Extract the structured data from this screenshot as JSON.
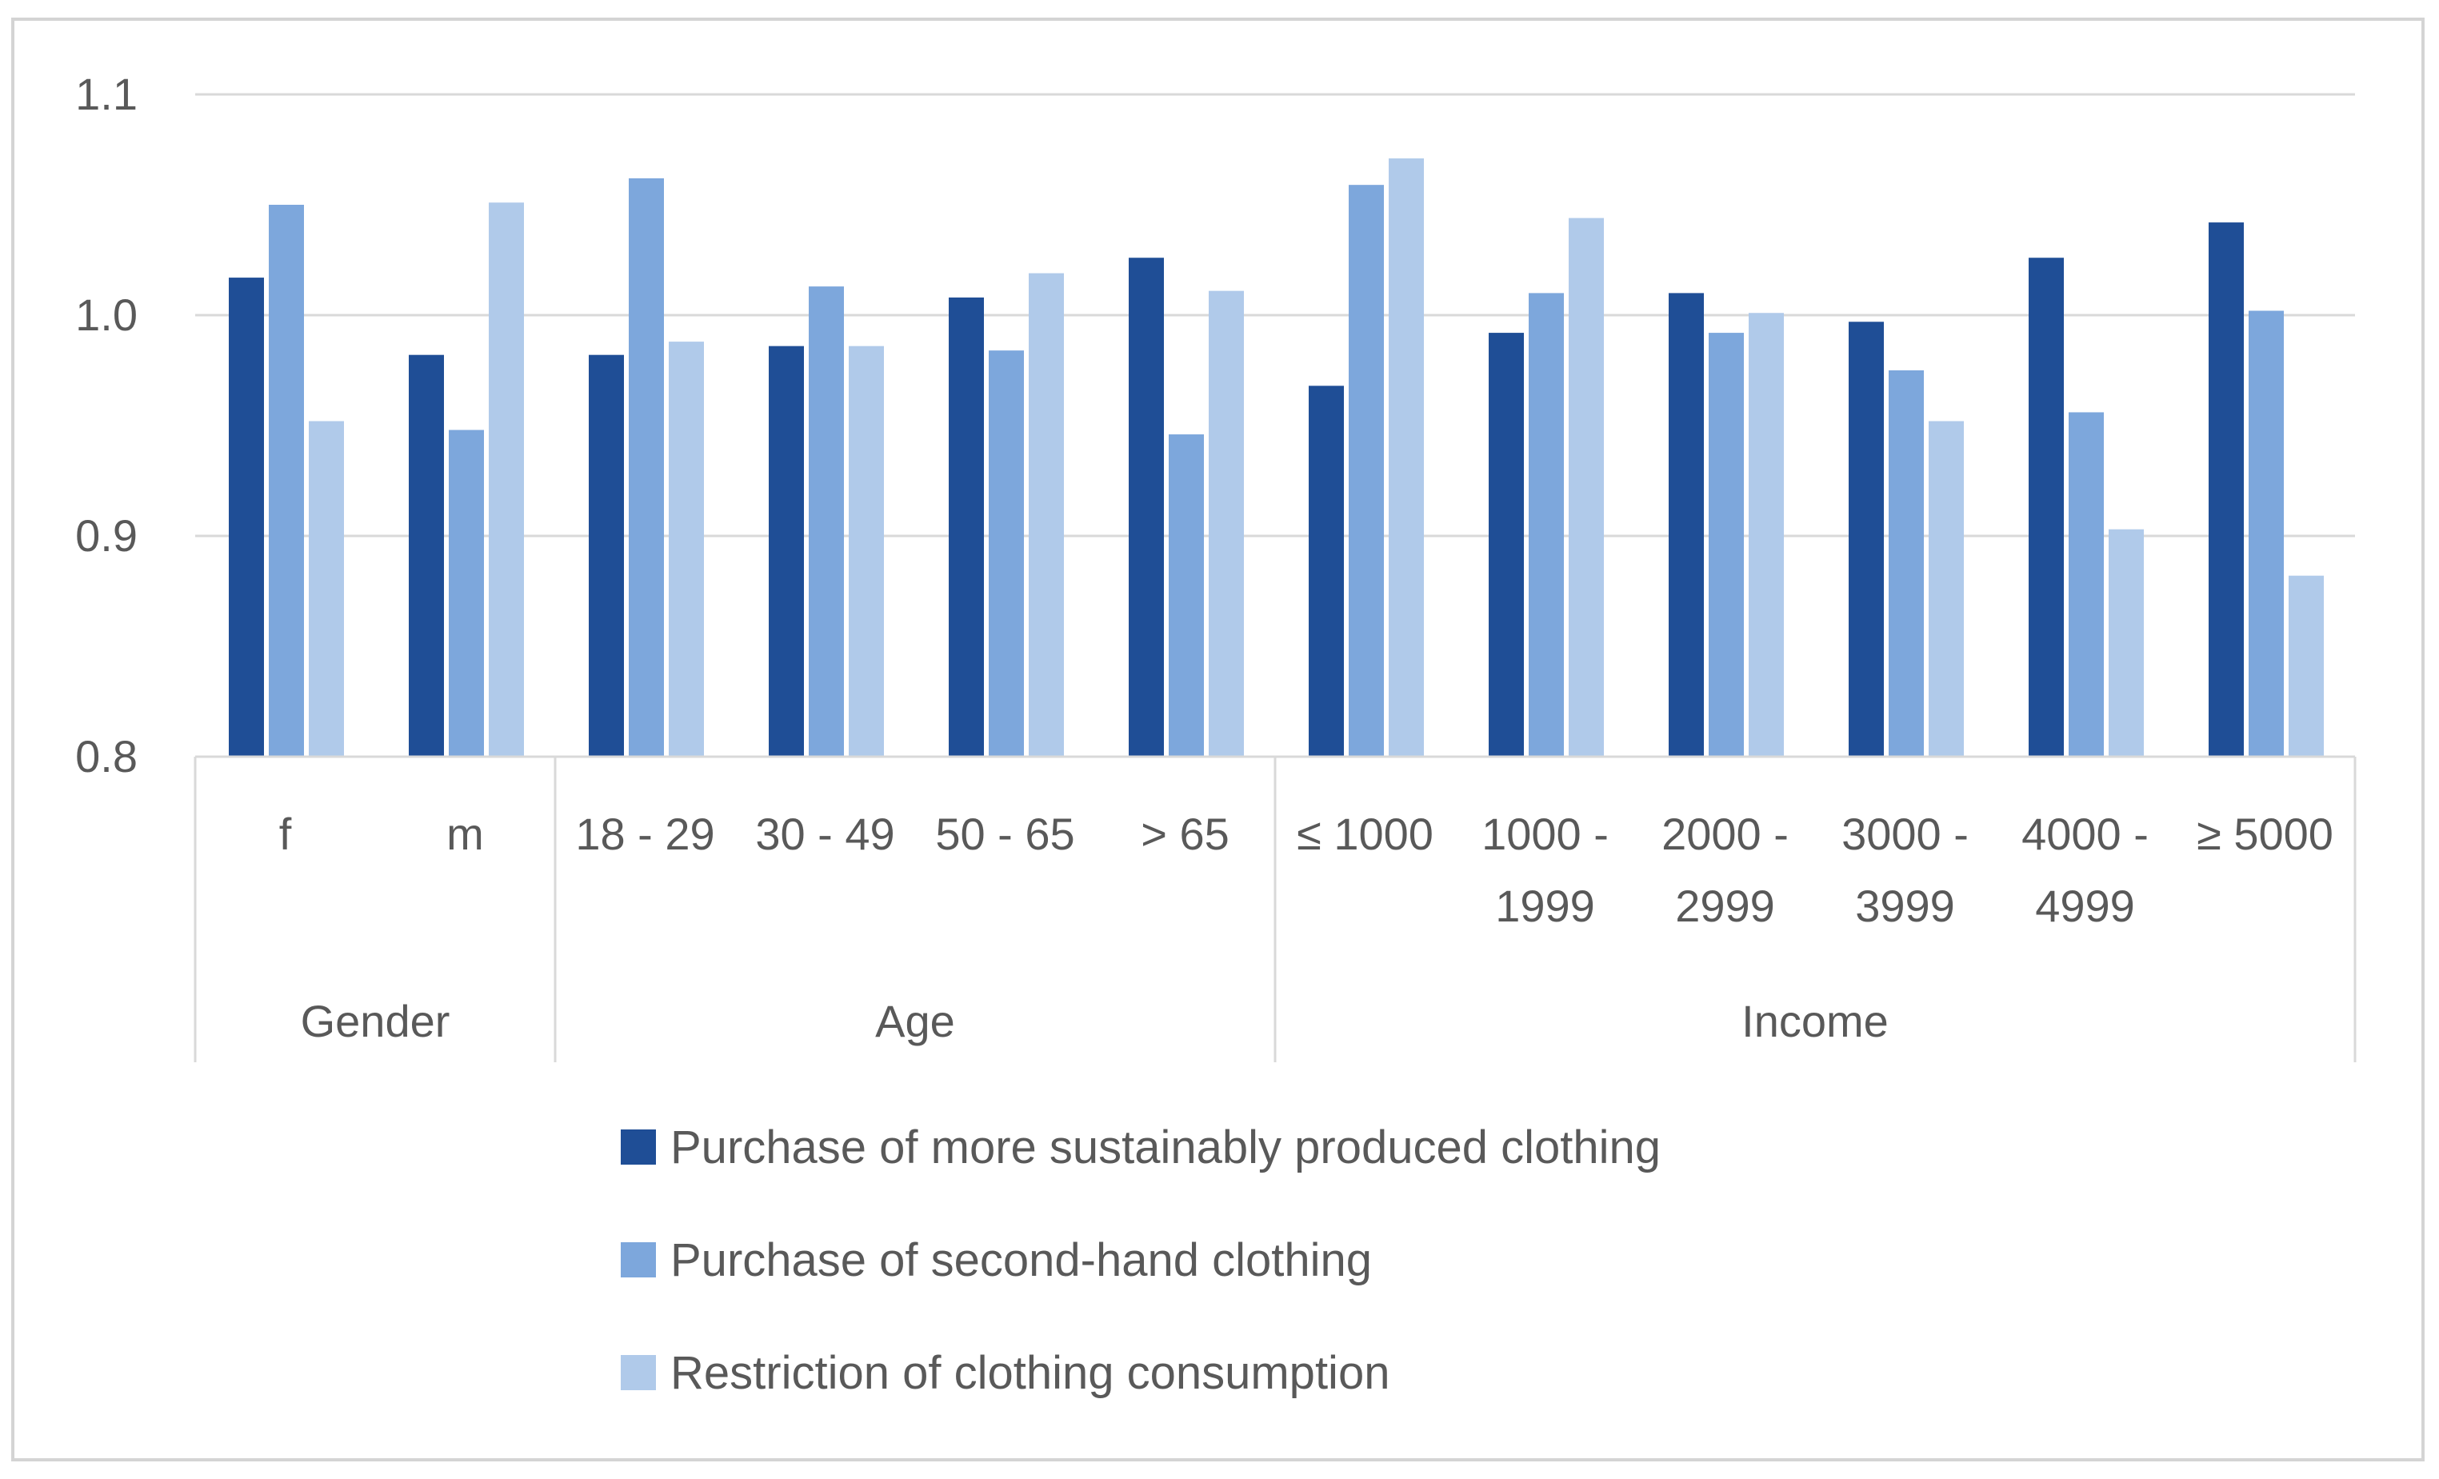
{
  "chart_data": {
    "type": "bar",
    "title": "",
    "xlabel": "",
    "ylabel": "",
    "ylim": [
      0.8,
      1.1
    ],
    "yticks": [
      "0.8",
      "0.9",
      "1.0",
      "1.1"
    ],
    "ytick_values": [
      0.8,
      0.9,
      1.0,
      1.1
    ],
    "grid": true,
    "legend_position": "bottom",
    "groups": [
      {
        "name": "Gender",
        "categories": [
          [
            "f"
          ],
          [
            "m"
          ]
        ]
      },
      {
        "name": "Age",
        "categories": [
          [
            "18 - 29"
          ],
          [
            "30 - 49"
          ],
          [
            "50 - 65"
          ],
          [
            "> 65"
          ]
        ]
      },
      {
        "name": "Income",
        "categories": [
          [
            "≤ 1000"
          ],
          [
            "1000 -",
            "1999"
          ],
          [
            "2000 -",
            "2999"
          ],
          [
            "3000 -",
            "3999"
          ],
          [
            "4000 -",
            "4999"
          ],
          [
            "≥ 5000"
          ]
        ]
      }
    ],
    "series": [
      {
        "name": "Purchase of more sustainably produced clothing",
        "color": "#1f4e96",
        "values": [
          1.017,
          0.982,
          0.982,
          0.986,
          1.008,
          1.026,
          0.968,
          0.992,
          1.01,
          0.997,
          1.026,
          1.042
        ]
      },
      {
        "name": "Purchase of second-hand clothing",
        "color": "#7da7dc",
        "values": [
          1.05,
          0.948,
          1.062,
          1.013,
          0.984,
          0.946,
          1.059,
          1.01,
          0.992,
          0.975,
          0.956,
          1.002
        ]
      },
      {
        "name": "Restriction of clothing consumption",
        "color": "#b0caea",
        "values": [
          0.952,
          1.051,
          0.988,
          0.986,
          1.019,
          1.011,
          1.071,
          1.044,
          1.001,
          0.952,
          0.903,
          0.882
        ]
      }
    ]
  }
}
